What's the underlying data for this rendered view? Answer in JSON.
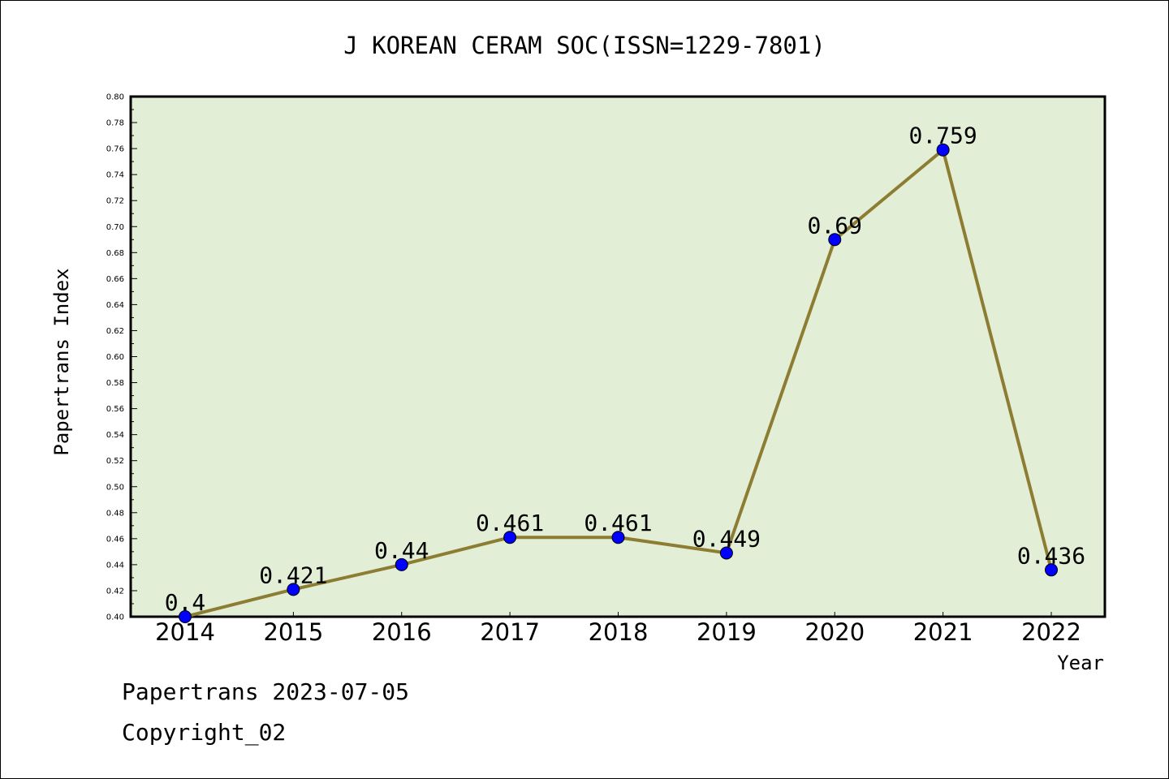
{
  "chart_data": {
    "type": "line",
    "title": "J KOREAN CERAM SOC(ISSN=1229-7801)",
    "xlabel": "Year",
    "ylabel": "Papertrans Index",
    "categories": [
      "2014",
      "2015",
      "2016",
      "2017",
      "2018",
      "2019",
      "2020",
      "2021",
      "2022"
    ],
    "values": [
      0.4,
      0.421,
      0.44,
      0.461,
      0.461,
      0.449,
      0.69,
      0.759,
      0.436
    ],
    "data_labels": [
      "0.4",
      "0.421",
      "0.44",
      "0.461",
      "0.461",
      "0.449",
      "0.69",
      "0.759",
      "0.436"
    ],
    "ylim": [
      0.4,
      0.8
    ],
    "yticks": [
      "0.40",
      "0.42",
      "0.44",
      "0.46",
      "0.48",
      "0.50",
      "0.52",
      "0.54",
      "0.56",
      "0.58",
      "0.60",
      "0.62",
      "0.64",
      "0.66",
      "0.68",
      "0.70",
      "0.72",
      "0.74",
      "0.76",
      "0.78",
      "0.80"
    ],
    "grid": false,
    "colors": {
      "plot_background": "#e2efd6",
      "line": "#8c7d33",
      "marker": "#0000ff"
    }
  },
  "footer": {
    "source": "Papertrans 2023-07-05",
    "copyright": "Copyright_02"
  }
}
